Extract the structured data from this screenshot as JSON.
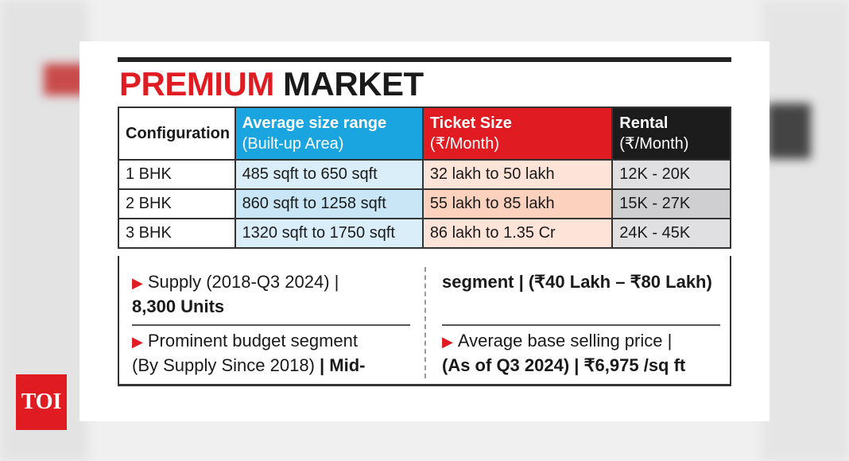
{
  "title": {
    "part1": "PREMIUM",
    "part2": "MARKET"
  },
  "table": {
    "headers": [
      {
        "line1": "Configuration",
        "line2": ""
      },
      {
        "line1": "Average size range",
        "line2": "(Built-up Area)"
      },
      {
        "line1": "Ticket Size",
        "line2": "(₹/Month)"
      },
      {
        "line1": "Rental",
        "line2": "(₹/Month)"
      }
    ],
    "rows": [
      [
        "1 BHK",
        "485 sqft to 650 sqft",
        "32 lakh to 50 lakh",
        "12K - 20K"
      ],
      [
        "2 BHK",
        "860 sqft to 1258 sqft",
        "55 lakh to 85 lakh",
        "15K - 27K"
      ],
      [
        "3 BHK",
        "1320 sqft to 1750 sqft",
        "86 lakh to 1.35 Cr",
        "24K - 45K"
      ]
    ]
  },
  "notes": {
    "supply": {
      "label": "Supply (2018-Q3 2024) |",
      "value": "8,300 Units"
    },
    "budget": {
      "label": "Prominent budget segment",
      "sublabel": "(By Supply Since 2018)",
      "value_start": "| Mid-",
      "value_end": "segment | (₹40 Lakh – ₹80 Lakh)"
    },
    "price": {
      "label": "Average base selling price |",
      "value": "(As of Q3 2024) | ₹6,975 /sq ft"
    }
  },
  "logo": {
    "text": "TOI"
  },
  "colors": {
    "red": "#e11b22",
    "blue": "#1aa5e0",
    "dark": "#1c1c1c"
  },
  "icons": {
    "bullet": "triangle-right-icon"
  }
}
